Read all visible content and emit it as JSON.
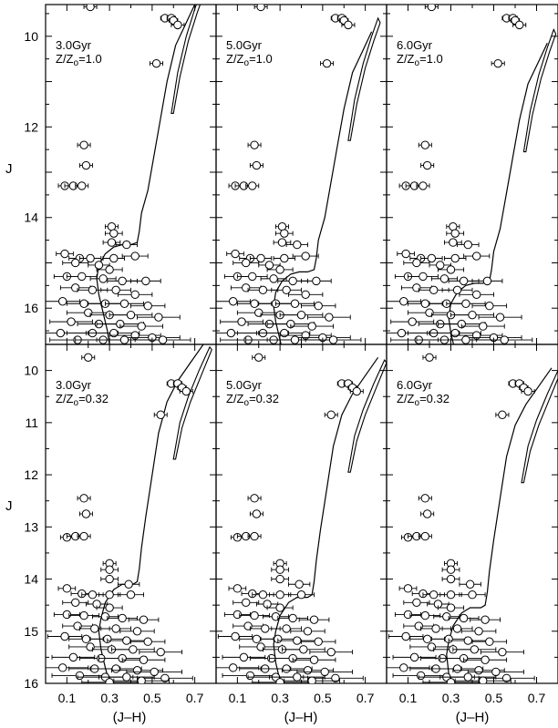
{
  "figure": {
    "ylabel": "J",
    "xlabel": "(J–H)",
    "x_ticks": [
      "0.1",
      "0.3",
      "0.5",
      "0.7"
    ],
    "y_ticks_top": [
      "10",
      "12",
      "14",
      "16"
    ],
    "y_ticks_bottom": [
      "10",
      "11",
      "12",
      "13",
      "14",
      "15",
      "16"
    ]
  },
  "chart_data": [
    {
      "type": "scatter",
      "panel": "top-left",
      "age_label": "3.0Gyr",
      "z_prefix": "Z/Z",
      "z_sub": "o",
      "z_value": "=1.0",
      "xlim": [
        0.0,
        0.8
      ],
      "ylim": [
        16.8,
        9.3
      ],
      "isochrone_shift": [
        0.0,
        0.0
      ]
    },
    {
      "type": "scatter",
      "panel": "top-middle",
      "age_label": "5.0Gyr",
      "z_prefix": "Z/Z",
      "z_sub": "o",
      "z_value": "=1.0",
      "xlim": [
        0.0,
        0.8
      ],
      "ylim": [
        16.8,
        9.3
      ],
      "isochrone_shift": [
        0.03,
        0.6
      ]
    },
    {
      "type": "scatter",
      "panel": "top-right",
      "age_label": "6.0Gyr",
      "z_prefix": "Z/Z",
      "z_sub": "o",
      "z_value": "=1.0",
      "xlim": [
        0.0,
        0.8
      ],
      "ylim": [
        16.8,
        9.3
      ],
      "isochrone_shift": [
        0.05,
        0.85
      ]
    },
    {
      "type": "scatter",
      "panel": "bottom-left",
      "age_label": "3.0Gyr",
      "z_prefix": "Z/Z",
      "z_sub": "o",
      "z_value": "=0.32",
      "xlim": [
        0.0,
        0.8
      ],
      "ylim": [
        16.0,
        9.5
      ],
      "isochrone_shift": [
        0.0,
        0.0
      ]
    },
    {
      "type": "scatter",
      "panel": "bottom-middle",
      "age_label": "5.0Gyr",
      "z_prefix": "Z/Z",
      "z_sub": "o",
      "z_value": "=0.32",
      "xlim": [
        0.0,
        0.8
      ],
      "ylim": [
        16.0,
        9.5
      ],
      "isochrone_shift": [
        0.02,
        0.25
      ]
    },
    {
      "type": "scatter",
      "panel": "bottom-right",
      "age_label": "6.0Gyr",
      "z_prefix": "Z/Z",
      "z_sub": "o",
      "z_value": "=0.32",
      "xlim": [
        0.0,
        0.8
      ],
      "ylim": [
        16.0,
        9.5
      ],
      "isochrone_shift": [
        0.03,
        0.45
      ]
    }
  ],
  "stars": {
    "top": [
      [
        0.21,
        9.35,
        0.03
      ],
      [
        0.56,
        9.6,
        0.02
      ],
      [
        0.59,
        9.6,
        0.02
      ],
      [
        0.6,
        9.65,
        0.02
      ],
      [
        0.62,
        9.75,
        0.03
      ],
      [
        0.52,
        10.6,
        0.03
      ],
      [
        0.18,
        12.4,
        0.03
      ],
      [
        0.19,
        12.85,
        0.03
      ],
      [
        0.09,
        13.3,
        0.03
      ],
      [
        0.13,
        13.3,
        0.04
      ],
      [
        0.17,
        13.3,
        0.03
      ],
      [
        0.31,
        14.2,
        0.03
      ],
      [
        0.32,
        14.35,
        0.04
      ],
      [
        0.31,
        14.55,
        0.04
      ],
      [
        0.38,
        14.6,
        0.05
      ],
      [
        0.09,
        14.8,
        0.04
      ],
      [
        0.16,
        14.9,
        0.05
      ],
      [
        0.21,
        14.9,
        0.05
      ],
      [
        0.32,
        14.9,
        0.05
      ],
      [
        0.42,
        14.85,
        0.06
      ],
      [
        0.14,
        15.0,
        0.06
      ],
      [
        0.25,
        15.05,
        0.05
      ],
      [
        0.3,
        15.15,
        0.06
      ],
      [
        0.1,
        15.3,
        0.06
      ],
      [
        0.17,
        15.3,
        0.07
      ],
      [
        0.27,
        15.35,
        0.06
      ],
      [
        0.36,
        15.4,
        0.07
      ],
      [
        0.47,
        15.4,
        0.07
      ],
      [
        0.14,
        15.55,
        0.07
      ],
      [
        0.22,
        15.6,
        0.07
      ],
      [
        0.33,
        15.6,
        0.07
      ],
      [
        0.42,
        15.7,
        0.08
      ],
      [
        0.08,
        15.85,
        0.08
      ],
      [
        0.18,
        15.9,
        0.08
      ],
      [
        0.28,
        15.9,
        0.08
      ],
      [
        0.37,
        15.9,
        0.09
      ],
      [
        0.48,
        15.95,
        0.08
      ],
      [
        0.2,
        16.1,
        0.1
      ],
      [
        0.3,
        16.15,
        0.09
      ],
      [
        0.4,
        16.15,
        0.1
      ],
      [
        0.53,
        16.2,
        0.1
      ],
      [
        0.12,
        16.3,
        0.1
      ],
      [
        0.25,
        16.35,
        0.1
      ],
      [
        0.35,
        16.35,
        0.11
      ],
      [
        0.45,
        16.4,
        0.1
      ],
      [
        0.07,
        16.55,
        0.12
      ],
      [
        0.22,
        16.55,
        0.12
      ],
      [
        0.32,
        16.55,
        0.12
      ],
      [
        0.42,
        16.6,
        0.12
      ],
      [
        0.5,
        16.65,
        0.13
      ],
      [
        0.15,
        16.7,
        0.13
      ],
      [
        0.27,
        16.7,
        0.13
      ],
      [
        0.37,
        16.7,
        0.13
      ],
      [
        0.55,
        16.7,
        0.13
      ]
    ],
    "bottom": [
      [
        0.2,
        9.75,
        0.03
      ],
      [
        0.59,
        10.25,
        0.02
      ],
      [
        0.62,
        10.25,
        0.02
      ],
      [
        0.64,
        10.33,
        0.02
      ],
      [
        0.66,
        10.4,
        0.03
      ],
      [
        0.54,
        10.85,
        0.03
      ],
      [
        0.18,
        12.45,
        0.03
      ],
      [
        0.19,
        12.75,
        0.03
      ],
      [
        0.1,
        13.2,
        0.03
      ],
      [
        0.14,
        13.18,
        0.04
      ],
      [
        0.18,
        13.18,
        0.03
      ],
      [
        0.3,
        13.7,
        0.03
      ],
      [
        0.3,
        13.82,
        0.04
      ],
      [
        0.3,
        14.0,
        0.04
      ],
      [
        0.39,
        14.1,
        0.05
      ],
      [
        0.1,
        14.18,
        0.04
      ],
      [
        0.17,
        14.28,
        0.05
      ],
      [
        0.22,
        14.3,
        0.05
      ],
      [
        0.3,
        14.3,
        0.05
      ],
      [
        0.4,
        14.3,
        0.06
      ],
      [
        0.14,
        14.45,
        0.06
      ],
      [
        0.24,
        14.48,
        0.05
      ],
      [
        0.3,
        14.55,
        0.06
      ],
      [
        0.1,
        14.68,
        0.06
      ],
      [
        0.18,
        14.7,
        0.07
      ],
      [
        0.28,
        14.72,
        0.06
      ],
      [
        0.36,
        14.75,
        0.07
      ],
      [
        0.46,
        14.78,
        0.07
      ],
      [
        0.15,
        14.9,
        0.07
      ],
      [
        0.23,
        14.95,
        0.07
      ],
      [
        0.33,
        14.95,
        0.07
      ],
      [
        0.43,
        15.0,
        0.08
      ],
      [
        0.09,
        15.1,
        0.08
      ],
      [
        0.19,
        15.15,
        0.08
      ],
      [
        0.29,
        15.15,
        0.08
      ],
      [
        0.38,
        15.18,
        0.09
      ],
      [
        0.48,
        15.2,
        0.08
      ],
      [
        0.21,
        15.3,
        0.1
      ],
      [
        0.31,
        15.35,
        0.09
      ],
      [
        0.41,
        15.35,
        0.1
      ],
      [
        0.54,
        15.4,
        0.1
      ],
      [
        0.13,
        15.5,
        0.1
      ],
      [
        0.26,
        15.52,
        0.1
      ],
      [
        0.36,
        15.52,
        0.11
      ],
      [
        0.46,
        15.55,
        0.1
      ],
      [
        0.08,
        15.7,
        0.12
      ],
      [
        0.23,
        15.72,
        0.12
      ],
      [
        0.33,
        15.72,
        0.12
      ],
      [
        0.43,
        15.75,
        0.12
      ],
      [
        0.51,
        15.78,
        0.13
      ],
      [
        0.16,
        15.85,
        0.13
      ],
      [
        0.28,
        15.88,
        0.13
      ],
      [
        0.38,
        15.88,
        0.13
      ],
      [
        0.56,
        15.9,
        0.13
      ],
      [
        0.45,
        15.95,
        0.13
      ],
      [
        0.3,
        15.98,
        0.13
      ]
    ]
  },
  "isochrone": {
    "top": {
      "main": [
        [
          0.3,
          16.8
        ],
        [
          0.29,
          16.5
        ],
        [
          0.27,
          16.1
        ],
        [
          0.25,
          15.7
        ],
        [
          0.24,
          15.35
        ],
        [
          0.25,
          15.05
        ],
        [
          0.28,
          14.8
        ],
        [
          0.32,
          14.65
        ],
        [
          0.36,
          14.6
        ],
        [
          0.4,
          14.6
        ],
        [
          0.43,
          14.55
        ],
        [
          0.44,
          14.3
        ],
        [
          0.45,
          13.9
        ],
        [
          0.48,
          13.4
        ],
        [
          0.51,
          12.6
        ],
        [
          0.54,
          11.8
        ],
        [
          0.57,
          11.0
        ],
        [
          0.61,
          10.2
        ],
        [
          0.66,
          9.7
        ],
        [
          0.7,
          9.3
        ]
      ],
      "branch": [
        [
          0.59,
          11.7
        ],
        [
          0.62,
          10.8
        ],
        [
          0.66,
          10.0
        ],
        [
          0.7,
          9.4
        ],
        [
          0.73,
          9.0
        ],
        [
          0.74,
          9.1
        ],
        [
          0.71,
          9.5
        ],
        [
          0.67,
          10.1
        ],
        [
          0.63,
          10.9
        ],
        [
          0.6,
          11.7
        ],
        [
          0.59,
          11.7
        ]
      ]
    },
    "bottom": {
      "main": [
        [
          0.3,
          16.0
        ],
        [
          0.28,
          15.7
        ],
        [
          0.26,
          15.35
        ],
        [
          0.25,
          15.0
        ],
        [
          0.26,
          14.75
        ],
        [
          0.28,
          14.45
        ],
        [
          0.32,
          14.2
        ],
        [
          0.36,
          14.1
        ],
        [
          0.41,
          14.1
        ],
        [
          0.43,
          14.05
        ],
        [
          0.44,
          13.8
        ],
        [
          0.45,
          13.4
        ],
        [
          0.47,
          12.8
        ],
        [
          0.5,
          12.0
        ],
        [
          0.53,
          11.2
        ],
        [
          0.57,
          10.6
        ],
        [
          0.62,
          10.2
        ],
        [
          0.68,
          9.85
        ],
        [
          0.74,
          9.5
        ]
      ],
      "branch": [
        [
          0.6,
          11.7
        ],
        [
          0.63,
          11.0
        ],
        [
          0.67,
          10.5
        ],
        [
          0.72,
          10.0
        ],
        [
          0.77,
          9.55
        ],
        [
          0.78,
          9.6
        ],
        [
          0.73,
          10.1
        ],
        [
          0.68,
          10.6
        ],
        [
          0.64,
          11.1
        ],
        [
          0.61,
          11.7
        ],
        [
          0.6,
          11.7
        ]
      ]
    }
  }
}
